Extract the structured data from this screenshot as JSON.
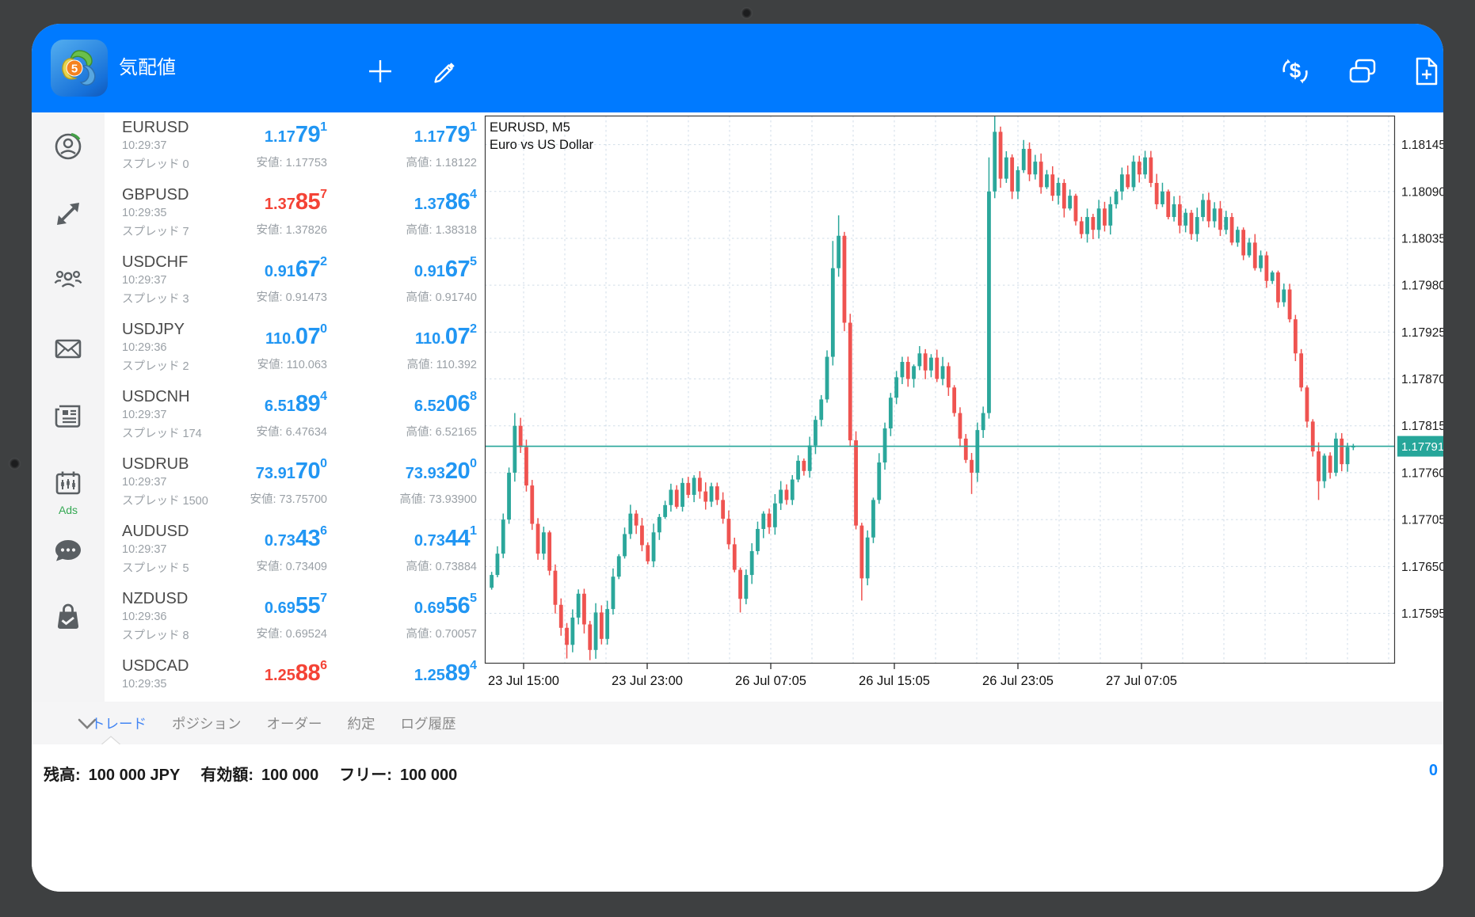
{
  "header": {
    "title": "気配値",
    "bg": "#007aff",
    "left_icons": [
      {
        "icon": "add-symbol-icon"
      },
      {
        "icon": "edit-symbols-icon"
      }
    ],
    "right_icons": [
      {
        "icon": "currency-exchange-icon"
      },
      {
        "icon": "windows-overlap-icon"
      },
      {
        "icon": "new-order-icon"
      }
    ]
  },
  "sidebar": {
    "items": [
      {
        "icon": "profile-icon"
      },
      {
        "icon": "quotes-trade-icon"
      },
      {
        "icon": "community-icon"
      },
      {
        "icon": "mail-icon"
      },
      {
        "icon": "news-icon"
      },
      {
        "icon": "calendar-icon",
        "badge": "Ads"
      },
      {
        "icon": "chat-icon"
      },
      {
        "icon": "market-icon"
      }
    ]
  },
  "quotes": {
    "low_label": "安値",
    "high_label": "高値",
    "rows": [
      {
        "symbol": "EURUSD",
        "time": "10:29:37",
        "spread": "スプレッド 0",
        "bid": {
          "pre": "1.17",
          "big": "79",
          "sup": "1",
          "dir": "blue"
        },
        "ask": {
          "pre": "1.17",
          "big": "79",
          "sup": "1",
          "dir": "blue"
        },
        "low": "安値: 1.17753",
        "high": "高値: 1.18122"
      },
      {
        "symbol": "GBPUSD",
        "time": "10:29:35",
        "spread": "スプレッド 7",
        "bid": {
          "pre": "1.37",
          "big": "85",
          "sup": "7",
          "dir": "red"
        },
        "ask": {
          "pre": "1.37",
          "big": "86",
          "sup": "4",
          "dir": "blue"
        },
        "low": "安値: 1.37826",
        "high": "高値: 1.38318"
      },
      {
        "symbol": "USDCHF",
        "time": "10:29:37",
        "spread": "スプレッド 3",
        "bid": {
          "pre": "0.91",
          "big": "67",
          "sup": "2",
          "dir": "blue"
        },
        "ask": {
          "pre": "0.91",
          "big": "67",
          "sup": "5",
          "dir": "blue"
        },
        "low": "安値: 0.91473",
        "high": "高値: 0.91740"
      },
      {
        "symbol": "USDJPY",
        "time": "10:29:36",
        "spread": "スプレッド 2",
        "bid": {
          "pre": "110.",
          "big": "07",
          "sup": "0",
          "dir": "blue"
        },
        "ask": {
          "pre": "110.",
          "big": "07",
          "sup": "2",
          "dir": "blue"
        },
        "low": "安値: 110.063",
        "high": "高値: 110.392"
      },
      {
        "symbol": "USDCNH",
        "time": "10:29:37",
        "spread": "スプレッド 174",
        "bid": {
          "pre": "6.51",
          "big": "89",
          "sup": "4",
          "dir": "blue"
        },
        "ask": {
          "pre": "6.52",
          "big": "06",
          "sup": "8",
          "dir": "blue"
        },
        "low": "安値: 6.47634",
        "high": "高値: 6.52165"
      },
      {
        "symbol": "USDRUB",
        "time": "10:29:37",
        "spread": "スプレッド 1500",
        "bid": {
          "pre": "73.91",
          "big": "70",
          "sup": "0",
          "dir": "blue"
        },
        "ask": {
          "pre": "73.93",
          "big": "20",
          "sup": "0",
          "dir": "blue"
        },
        "low": "安値: 73.75700",
        "high": "高値: 73.93900"
      },
      {
        "symbol": "AUDUSD",
        "time": "10:29:37",
        "spread": "スプレッド 5",
        "bid": {
          "pre": "0.73",
          "big": "43",
          "sup": "6",
          "dir": "blue"
        },
        "ask": {
          "pre": "0.73",
          "big": "44",
          "sup": "1",
          "dir": "blue"
        },
        "low": "安値: 0.73409",
        "high": "高値: 0.73884"
      },
      {
        "symbol": "NZDUSD",
        "time": "10:29:36",
        "spread": "スプレッド 8",
        "bid": {
          "pre": "0.69",
          "big": "55",
          "sup": "7",
          "dir": "blue"
        },
        "ask": {
          "pre": "0.69",
          "big": "56",
          "sup": "5",
          "dir": "blue"
        },
        "low": "安値: 0.69524",
        "high": "高値: 0.70057"
      },
      {
        "symbol": "USDCAD",
        "time": "10:29:35",
        "spread": "",
        "bid": {
          "pre": "1.25",
          "big": "88",
          "sup": "6",
          "dir": "red"
        },
        "ask": {
          "pre": "1.25",
          "big": "89",
          "sup": "4",
          "dir": "blue"
        },
        "low": "",
        "high": ""
      }
    ]
  },
  "chart_data": {
    "type": "candlestick",
    "symbol_label": "EURUSD, M5",
    "description": "Euro vs US Dollar",
    "timeframe": "M5",
    "current_price": 1.17791,
    "current_price_label": "1.17791",
    "ylim": [
      1.17536,
      1.18179
    ],
    "y_tick_labels": [
      "1.18145",
      "1.18090",
      "1.18035",
      "1.17980",
      "1.17925",
      "1.17870",
      "1.17815",
      "1.17760",
      "1.17705",
      "1.17650",
      "1.17595"
    ],
    "x_tick_labels": [
      "23 Jul 15:00",
      "23 Jul 23:00",
      "26 Jul 07:05",
      "26 Jul 15:05",
      "26 Jul 23:05",
      "27 Jul 07:05"
    ],
    "grid": {
      "first_label_x": 49,
      "label_step": 156,
      "minor_step": 52
    },
    "up_color": "#2ba79b",
    "down_color": "#ef5350",
    "line_color": "#26a69a",
    "tag_bg": "#26a69a",
    "path": [
      1.1764,
      1.17665,
      1.17705,
      1.1776,
      1.17815,
      1.1779,
      1.17745,
      1.177,
      1.17665,
      1.1769,
      1.17645,
      1.17605,
      1.17578,
      1.17558,
      1.1759,
      1.17618,
      1.17582,
      1.17552,
      1.17596,
      1.17565,
      1.176,
      1.17638,
      1.17662,
      1.17688,
      1.17712,
      1.17698,
      1.17675,
      1.17656,
      1.1769,
      1.17708,
      1.17722,
      1.1774,
      1.1772,
      1.17748,
      1.17734,
      1.17754,
      1.17738,
      1.17726,
      1.17744,
      1.17728,
      1.17706,
      1.17676,
      1.17646,
      1.17612,
      1.1764,
      1.17668,
      1.17694,
      1.17712,
      1.17696,
      1.17724,
      1.1774,
      1.17728,
      1.17752,
      1.17774,
      1.17762,
      1.17792,
      1.17822,
      1.17846,
      1.17896,
      1.18,
      1.18038,
      1.17936,
      1.17798,
      1.17698,
      1.17636,
      1.17684,
      1.17728,
      1.17772,
      1.17812,
      1.17848,
      1.17872,
      1.1789,
      1.1787,
      1.17885,
      1.179,
      1.1788,
      1.17895,
      1.1787,
      1.17885,
      1.1786,
      1.1783,
      1.178,
      1.17775,
      1.1776,
      1.1781,
      1.1783,
      1.1809,
      1.1816,
      1.18105,
      1.1813,
      1.1809,
      1.18115,
      1.1814,
      1.1811,
      1.18125,
      1.18095,
      1.1811,
      1.18085,
      1.181,
      1.1807,
      1.18085,
      1.18055,
      1.1804,
      1.1806,
      1.18045,
      1.1807,
      1.1805,
      1.18075,
      1.1809,
      1.1811,
      1.18095,
      1.18125,
      1.1811,
      1.1813,
      1.181,
      1.18075,
      1.1809,
      1.1806,
      1.18075,
      1.1805,
      1.18065,
      1.1804,
      1.1806,
      1.1808,
      1.18055,
      1.1807,
      1.18045,
      1.1806,
      1.1803,
      1.18045,
      1.18015,
      1.1803,
      1.18,
      1.18015,
      1.17985,
      1.17995,
      1.1796,
      1.17975,
      1.1794,
      1.179,
      1.1786,
      1.1782,
      1.17785,
      1.1775,
      1.1778,
      1.1776,
      1.178,
      1.1777,
      1.1779,
      1.17791
    ],
    "wick_overrides": {
      "4": {
        "h": 1.1783
      },
      "13": {
        "l": 1.17542
      },
      "17": {
        "l": 1.1754
      },
      "43": {
        "l": 1.17596
      },
      "59": {
        "h": 1.18032
      },
      "60": {
        "h": 1.18062
      },
      "64": {
        "l": 1.1761
      },
      "83": {
        "l": 1.17735
      },
      "86": {
        "h": 1.1813
      },
      "87": {
        "h": 1.18178
      },
      "143": {
        "l": 1.17728
      }
    }
  },
  "bottom": {
    "tabs": [
      {
        "label": "トレード",
        "active": true
      },
      {
        "label": "ポジション",
        "active": false
      },
      {
        "label": "オーダー",
        "active": false
      },
      {
        "label": "約定",
        "active": false
      },
      {
        "label": "ログ履歴",
        "active": false
      }
    ],
    "account": {
      "items": [
        {
          "label": "残高:",
          "value": "100 000 JPY"
        },
        {
          "label": "有効額:",
          "value": "100 000"
        },
        {
          "label": "フリー:",
          "value": "100 000"
        }
      ],
      "badge": "0"
    }
  },
  "colors": {
    "header_bg": "#007aff",
    "price_blue": "#2196f3",
    "price_red": "#f44336",
    "tab_active": "#4285f4"
  }
}
